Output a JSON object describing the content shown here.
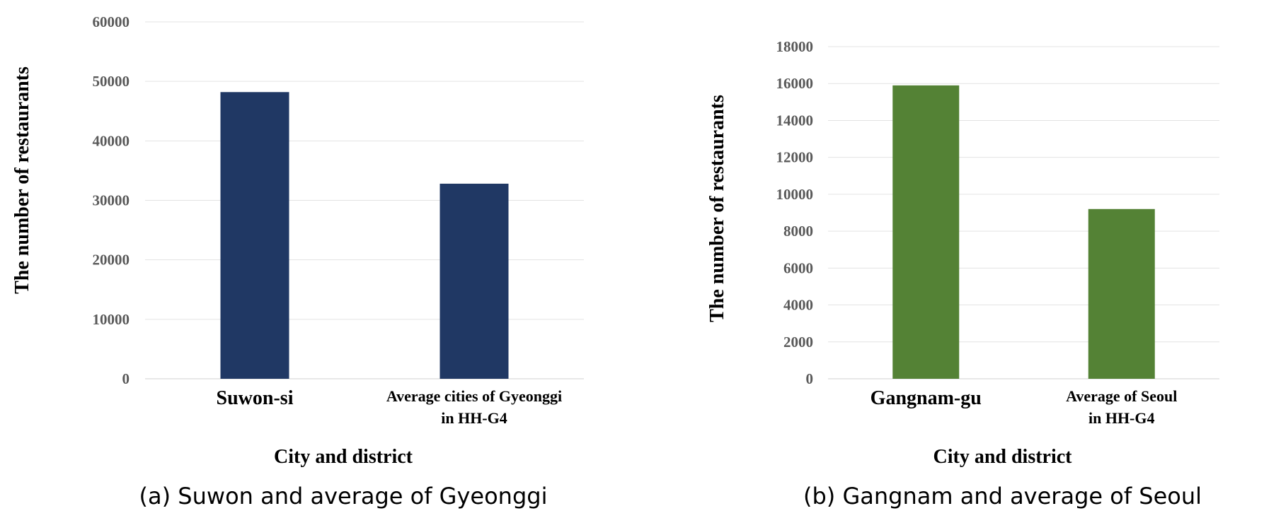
{
  "chart_data": [
    {
      "type": "bar",
      "categories": [
        [
          "Suwon-si"
        ],
        [
          "Average cities of Gyeonggi",
          "in HH-G4"
        ]
      ],
      "values": [
        48200,
        32800
      ],
      "xlabel": "City and district",
      "ylabel": "The number of restaurants",
      "ylim": [
        0,
        60000
      ],
      "ticks": [
        "0",
        "10000",
        "20000",
        "30000",
        "40000",
        "50000",
        "60000"
      ],
      "caption": "(a) Suwon and average of Gyeonggi",
      "color": "#203864",
      "grid": true,
      "legend": "none"
    },
    {
      "type": "bar",
      "categories": [
        [
          "Gangnam-gu"
        ],
        [
          "Average of Seoul",
          "in HH-G4"
        ]
      ],
      "values": [
        15900,
        9200
      ],
      "xlabel": "City and district",
      "ylabel": "The number of restaurants",
      "ylim": [
        0,
        18000
      ],
      "ticks": [
        "0",
        "2000",
        "4000",
        "6000",
        "8000",
        "10000",
        "12000",
        "14000",
        "16000",
        "18000"
      ],
      "caption": "(b) Gangnam and average of Seoul",
      "color": "#548235",
      "grid": true,
      "legend": "none"
    }
  ]
}
